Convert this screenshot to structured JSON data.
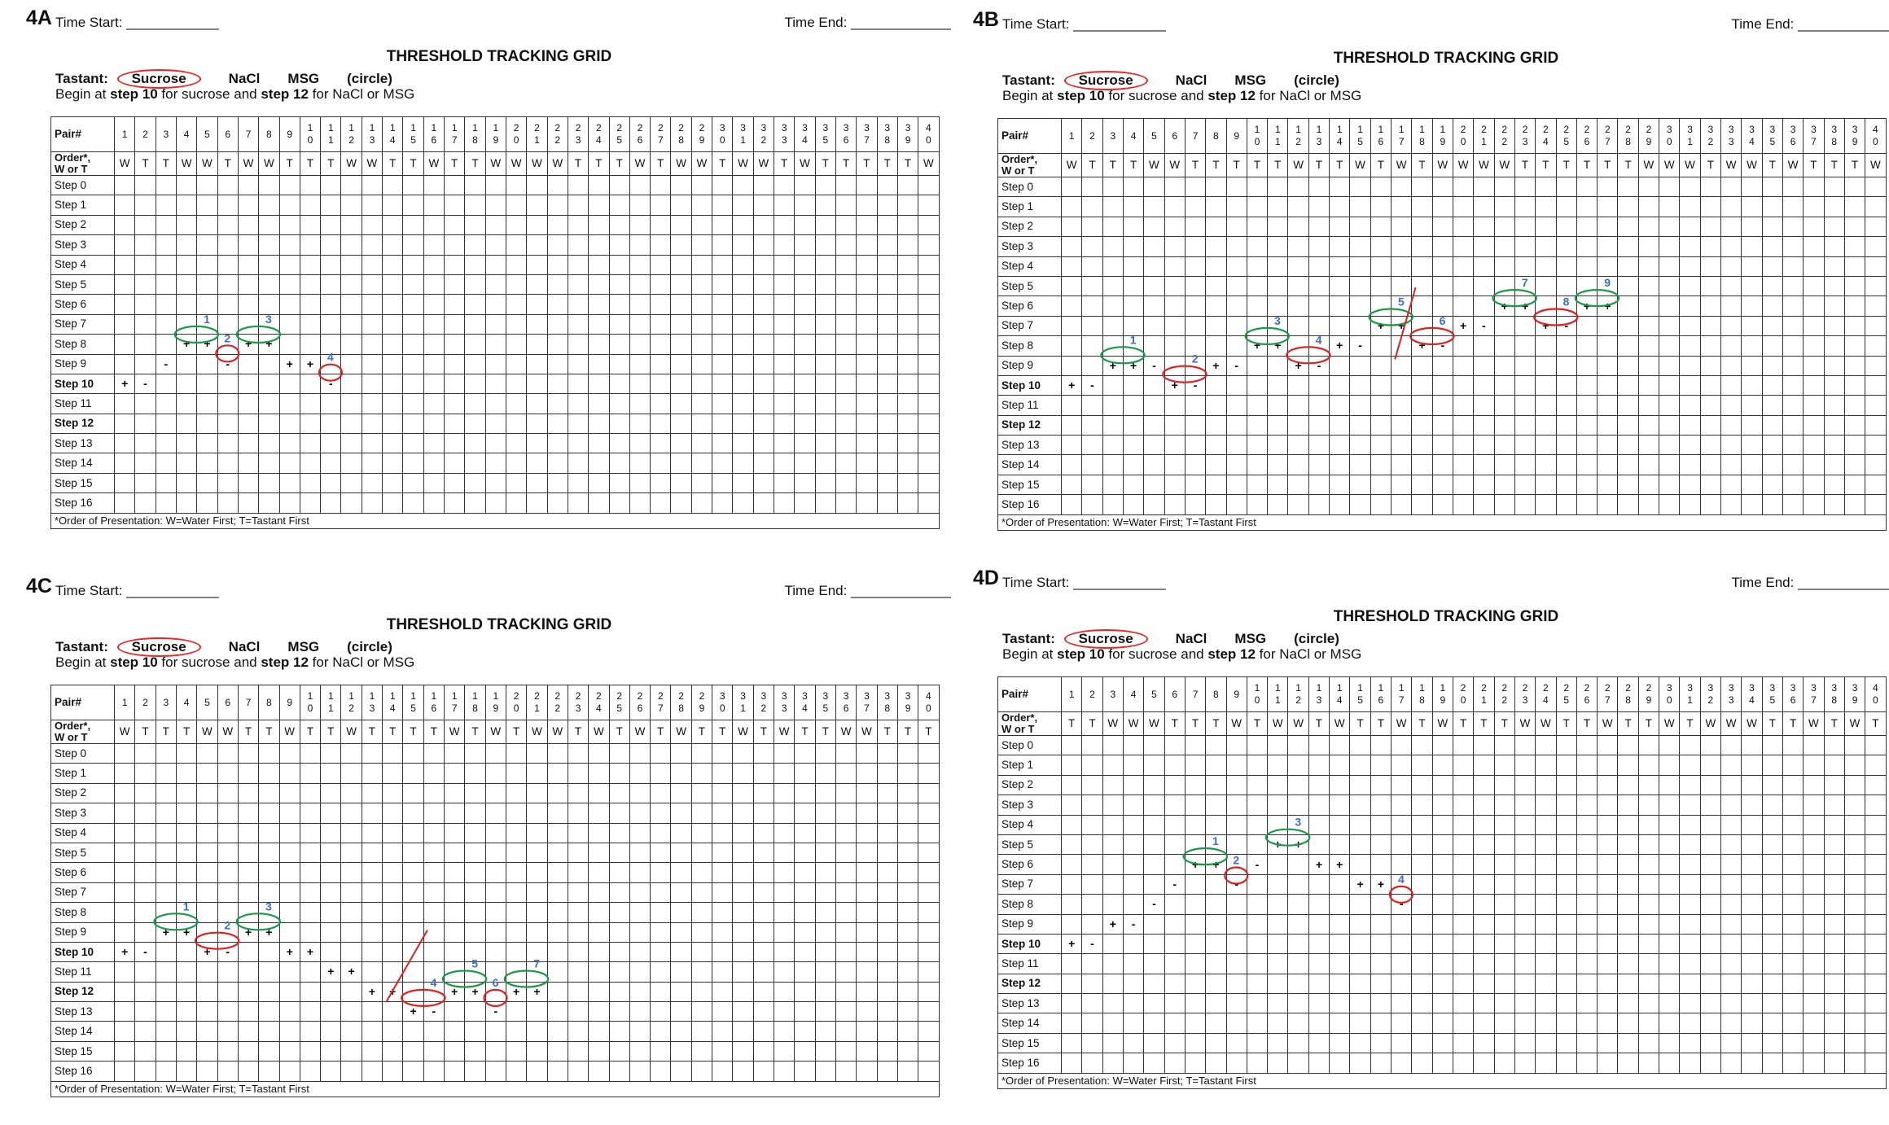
{
  "header": {
    "time_start": "Time Start: ____________",
    "time_end": "Time End: _____________",
    "title": "THRESHOLD TRACKING GRID",
    "tastant_label": "Tastant:",
    "options": [
      "Sucrose",
      "NaCl",
      "MSG",
      "(circle)"
    ],
    "begin_parts": [
      "Begin at ",
      "step 10",
      " for sucrose and ",
      "step 12",
      " for NaCl or MSG"
    ]
  },
  "grid": {
    "pair_label": "Pair#",
    "order_label_1": "Order*,",
    "order_label_2": "W or T",
    "pairs": [
      "1",
      "2",
      "3",
      "4",
      "5",
      "6",
      "7",
      "8",
      "9",
      "10",
      "11",
      "12",
      "13",
      "14",
      "15",
      "16",
      "17",
      "18",
      "19",
      "20",
      "21",
      "22",
      "23",
      "24",
      "25",
      "26",
      "27",
      "28",
      "29",
      "30",
      "31",
      "32",
      "33",
      "34",
      "35",
      "36",
      "37",
      "38",
      "39",
      "40"
    ],
    "steps": [
      "Step 0",
      "Step 1",
      "Step 2",
      "Step 3",
      "Step 4",
      "Step 5",
      "Step 6",
      "Step 7",
      "Step 8",
      "Step 9",
      "Step 10",
      "Step 11",
      "Step 12",
      "Step 13",
      "Step 14",
      "Step 15",
      "Step 16"
    ],
    "bold_steps": [
      10,
      12
    ],
    "footnote": "*Order of Presentation: W=Water First; T=Tastant First"
  },
  "panels": [
    {
      "label": "4A",
      "order": [
        "W",
        "T",
        "T",
        "W",
        "W",
        "T",
        "W",
        "W",
        "T",
        "T",
        "T",
        "W",
        "W",
        "T",
        "T",
        "W",
        "T",
        "T",
        "W",
        "W",
        "W",
        "W",
        "T",
        "T",
        "T",
        "W",
        "T",
        "W",
        "W",
        "T",
        "W",
        "W",
        "T",
        "W",
        "T",
        "T",
        "T",
        "T",
        "T",
        "W"
      ],
      "marks": [
        [
          1,
          10,
          "+"
        ],
        [
          2,
          10,
          "-"
        ],
        [
          3,
          9,
          "-"
        ],
        [
          4,
          8,
          "+"
        ],
        [
          5,
          8,
          "+"
        ],
        [
          6,
          9,
          "-"
        ],
        [
          7,
          8,
          "+"
        ],
        [
          8,
          8,
          "+"
        ],
        [
          9,
          9,
          "+"
        ],
        [
          10,
          9,
          "+"
        ],
        [
          11,
          10,
          "-"
        ]
      ],
      "green_ovals": [
        [
          4,
          5,
          8
        ],
        [
          7,
          8,
          8
        ]
      ],
      "red_ovals": [
        [
          6,
          6,
          9
        ],
        [
          11,
          11,
          10
        ]
      ],
      "labels": [
        [
          "1",
          5,
          8
        ],
        [
          "2",
          6,
          9
        ],
        [
          "3",
          8,
          8
        ],
        [
          "4",
          11,
          10
        ]
      ],
      "slashes": []
    },
    {
      "label": "4B",
      "order": [
        "W",
        "T",
        "T",
        "T",
        "W",
        "W",
        "T",
        "T",
        "T",
        "T",
        "T",
        "W",
        "T",
        "T",
        "W",
        "T",
        "W",
        "T",
        "W",
        "W",
        "W",
        "W",
        "T",
        "T",
        "T",
        "T",
        "T",
        "T",
        "W",
        "W",
        "W",
        "T",
        "W",
        "W",
        "T",
        "W",
        "T",
        "T",
        "T",
        "W"
      ],
      "marks": [
        [
          1,
          10,
          "+"
        ],
        [
          2,
          10,
          "-"
        ],
        [
          3,
          9,
          "+"
        ],
        [
          4,
          9,
          "+"
        ],
        [
          5,
          9,
          "-"
        ],
        [
          6,
          10,
          "+"
        ],
        [
          7,
          10,
          "-"
        ],
        [
          8,
          9,
          "+"
        ],
        [
          9,
          9,
          "-"
        ],
        [
          10,
          8,
          "+"
        ],
        [
          11,
          8,
          "+"
        ],
        [
          12,
          9,
          "+"
        ],
        [
          13,
          9,
          "-"
        ],
        [
          14,
          8,
          "+"
        ],
        [
          15,
          8,
          "-"
        ],
        [
          16,
          7,
          "+"
        ],
        [
          17,
          7,
          "+"
        ],
        [
          18,
          8,
          "+"
        ],
        [
          19,
          8,
          "-"
        ],
        [
          20,
          7,
          "+"
        ],
        [
          21,
          7,
          "-"
        ],
        [
          22,
          6,
          "+"
        ],
        [
          23,
          6,
          "+"
        ],
        [
          24,
          7,
          "+"
        ],
        [
          25,
          7,
          "-"
        ],
        [
          26,
          6,
          "+"
        ],
        [
          27,
          6,
          "+"
        ]
      ],
      "green_ovals": [
        [
          3,
          4,
          9
        ],
        [
          10,
          11,
          8
        ],
        [
          16,
          17,
          7
        ],
        [
          22,
          23,
          6
        ],
        [
          26,
          27,
          6
        ]
      ],
      "red_ovals": [
        [
          6,
          7,
          10
        ],
        [
          12,
          13,
          9
        ],
        [
          18,
          19,
          8
        ],
        [
          24,
          25,
          7
        ]
      ],
      "labels": [
        [
          "1",
          4,
          9
        ],
        [
          "2",
          7,
          10
        ],
        [
          "3",
          11,
          8
        ],
        [
          "4",
          13,
          9
        ],
        [
          "5",
          17,
          7
        ],
        [
          "6",
          19,
          8
        ],
        [
          "7",
          23,
          6
        ],
        [
          "8",
          25,
          7
        ],
        [
          "9",
          27,
          6
        ]
      ],
      "slashes": [
        [
          17,
          9,
          18,
          6
        ]
      ]
    },
    {
      "label": "4C",
      "order": [
        "W",
        "T",
        "T",
        "T",
        "W",
        "W",
        "T",
        "T",
        "W",
        "T",
        "T",
        "W",
        "T",
        "T",
        "T",
        "T",
        "W",
        "T",
        "W",
        "T",
        "W",
        "W",
        "T",
        "W",
        "T",
        "W",
        "T",
        "W",
        "T",
        "T",
        "W",
        "T",
        "W",
        "T",
        "T",
        "W",
        "W",
        "T",
        "T",
        "T"
      ],
      "marks": [
        [
          1,
          10,
          "+"
        ],
        [
          2,
          10,
          "-"
        ],
        [
          3,
          9,
          "+"
        ],
        [
          4,
          9,
          "+"
        ],
        [
          5,
          10,
          "+"
        ],
        [
          6,
          10,
          "-"
        ],
        [
          7,
          9,
          "+"
        ],
        [
          8,
          9,
          "+"
        ],
        [
          9,
          10,
          "+"
        ],
        [
          10,
          10,
          "+"
        ],
        [
          11,
          11,
          "+"
        ],
        [
          12,
          11,
          "+"
        ],
        [
          13,
          12,
          "+"
        ],
        [
          14,
          12,
          "+"
        ],
        [
          15,
          13,
          "+"
        ],
        [
          16,
          13,
          "-"
        ],
        [
          17,
          12,
          "+"
        ],
        [
          18,
          12,
          "+"
        ],
        [
          19,
          13,
          "-"
        ],
        [
          20,
          12,
          "+"
        ],
        [
          21,
          12,
          "+"
        ]
      ],
      "green_ovals": [
        [
          3,
          4,
          9
        ],
        [
          7,
          8,
          9
        ],
        [
          17,
          18,
          12
        ],
        [
          20,
          21,
          12
        ]
      ],
      "red_ovals": [
        [
          5,
          6,
          10
        ],
        [
          15,
          16,
          13
        ],
        [
          19,
          19,
          13
        ]
      ],
      "labels": [
        [
          "1",
          4,
          9
        ],
        [
          "2",
          6,
          10
        ],
        [
          "3",
          8,
          9
        ],
        [
          "4",
          16,
          13
        ],
        [
          "5",
          18,
          12
        ],
        [
          "6",
          19,
          13
        ],
        [
          "7",
          21,
          12
        ]
      ],
      "slashes": [
        [
          14,
          13,
          16,
          10
        ]
      ]
    },
    {
      "label": "4D",
      "order": [
        "T",
        "T",
        "W",
        "W",
        "W",
        "T",
        "T",
        "T",
        "W",
        "T",
        "W",
        "W",
        "T",
        "W",
        "T",
        "T",
        "W",
        "T",
        "W",
        "T",
        "T",
        "T",
        "W",
        "W",
        "T",
        "T",
        "W",
        "T",
        "T",
        "W",
        "T",
        "W",
        "W",
        "W",
        "T",
        "T",
        "W",
        "T",
        "W",
        "T"
      ],
      "marks": [
        [
          1,
          10,
          "+"
        ],
        [
          2,
          10,
          "-"
        ],
        [
          3,
          9,
          "+"
        ],
        [
          4,
          9,
          "-"
        ],
        [
          5,
          8,
          "-"
        ],
        [
          6,
          7,
          "-"
        ],
        [
          7,
          6,
          "+"
        ],
        [
          8,
          6,
          "+"
        ],
        [
          9,
          7,
          "-"
        ],
        [
          10,
          6,
          "-"
        ],
        [
          11,
          5,
          "+"
        ],
        [
          12,
          5,
          "+"
        ],
        [
          13,
          6,
          "+"
        ],
        [
          14,
          6,
          "+"
        ],
        [
          15,
          7,
          "+"
        ],
        [
          16,
          7,
          "+"
        ],
        [
          17,
          8,
          "-"
        ]
      ],
      "green_ovals": [
        [
          7,
          8,
          6
        ],
        [
          11,
          12,
          5
        ]
      ],
      "red_ovals": [
        [
          9,
          9,
          7
        ],
        [
          17,
          17,
          8
        ]
      ],
      "labels": [
        [
          "1",
          8,
          6
        ],
        [
          "2",
          9,
          7
        ],
        [
          "3",
          12,
          5
        ],
        [
          "4",
          17,
          8
        ]
      ],
      "slashes": []
    }
  ],
  "colors": {
    "green": "#1a9a48",
    "red": "#e02020",
    "blue": "#3b6ec6",
    "slash": "#e02020"
  }
}
